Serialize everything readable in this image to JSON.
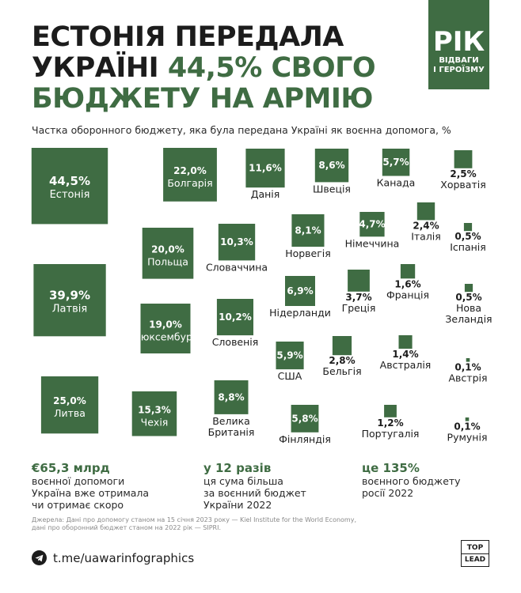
{
  "title": {
    "line1": "ЕСТОНІЯ ПЕРЕДАЛА",
    "line2_part1": "УКРАЇНІ ",
    "line2_accent": "44,5% СВОГО",
    "line3": "БЮДЖЕТУ НА АРМІЮ"
  },
  "badge": {
    "big": "РІК",
    "line1": "ВІДВАГИ",
    "line2": "І ГЕРОЇЗМУ"
  },
  "colors": {
    "accent": "#3f6c43",
    "text": "#1c1c1c"
  },
  "chart_data": {
    "type": "proportional-area squares",
    "title": "Частка оборонного бюджету, яка була передана Україні як воєнна допомога, %",
    "unit": "%",
    "items": [
      {
        "country": "Естонія",
        "value": 44.5,
        "label": "44,5%"
      },
      {
        "country": "Латвія",
        "value": 39.9,
        "label": "39,9%"
      },
      {
        "country": "Литва",
        "value": 25.0,
        "label": "25,0%"
      },
      {
        "country": "Болгарія",
        "value": 22.0,
        "label": "22,0%"
      },
      {
        "country": "Польща",
        "value": 20.0,
        "label": "20,0%"
      },
      {
        "country": "Люксембург",
        "value": 19.0,
        "label": "19,0%"
      },
      {
        "country": "Чехія",
        "value": 15.3,
        "label": "15,3%"
      },
      {
        "country": "Данія",
        "value": 11.6,
        "label": "11,6%"
      },
      {
        "country": "Словаччина",
        "value": 10.3,
        "label": "10,3%"
      },
      {
        "country": "Словенія",
        "value": 10.2,
        "label": "10,2%"
      },
      {
        "country": "Велика Британія",
        "value": 8.8,
        "label": "8,8%"
      },
      {
        "country": "Швеція",
        "value": 8.6,
        "label": "8,6%"
      },
      {
        "country": "Норвегія",
        "value": 8.1,
        "label": "8,1%"
      },
      {
        "country": "Нідерланди",
        "value": 6.9,
        "label": "6,9%"
      },
      {
        "country": "США",
        "value": 5.9,
        "label": "5,9%"
      },
      {
        "country": "Фінляндія",
        "value": 5.8,
        "label": "5,8%"
      },
      {
        "country": "Канада",
        "value": 5.7,
        "label": "5,7%"
      },
      {
        "country": "Німеччина",
        "value": 4.7,
        "label": "4,7%"
      },
      {
        "country": "Греція",
        "value": 3.7,
        "label": "3,7%"
      },
      {
        "country": "Бельгія",
        "value": 2.8,
        "label": "2,8%"
      },
      {
        "country": "Хорватія",
        "value": 2.5,
        "label": "2,5%"
      },
      {
        "country": "Італія",
        "value": 2.4,
        "label": "2,4%"
      },
      {
        "country": "Франція",
        "value": 1.6,
        "label": "1,6%"
      },
      {
        "country": "Австралія",
        "value": 1.4,
        "label": "1,4%"
      },
      {
        "country": "Португалія",
        "value": 1.2,
        "label": "1,2%"
      },
      {
        "country": "Іспанія",
        "value": 0.5,
        "label": "0,5%"
      },
      {
        "country": "Нова Зеландія",
        "value": 0.5,
        "label": "0,5%"
      },
      {
        "country": "Австрія",
        "value": 0.1,
        "label": "0,1%"
      },
      {
        "country": "Румунія",
        "value": 0.1,
        "label": "0,1%"
      }
    ]
  },
  "stats": [
    {
      "head": "€65,3 млрд",
      "lines": [
        "воєнної допомоги",
        "Україна вже отримала",
        "чи отримає скоро"
      ]
    },
    {
      "head": "у 12 разів",
      "lines": [
        "ця сума більша",
        "за воєнний бюджет",
        "України 2022"
      ]
    },
    {
      "head": "це 135%",
      "lines": [
        "воєнного бюджету",
        "росії 2022"
      ]
    }
  ],
  "source": {
    "line1": "Джерела: Дані про допомогу станом на 15 січня 2023 року — Kiel Institute for the World Economy,",
    "line2": "дані про оборонний бюджет станом на 2022 рік — SIPRI."
  },
  "footer": {
    "telegram": "t.me/uawarinfographics",
    "logo_top": "TOP",
    "logo_bottom": "LEAD"
  }
}
